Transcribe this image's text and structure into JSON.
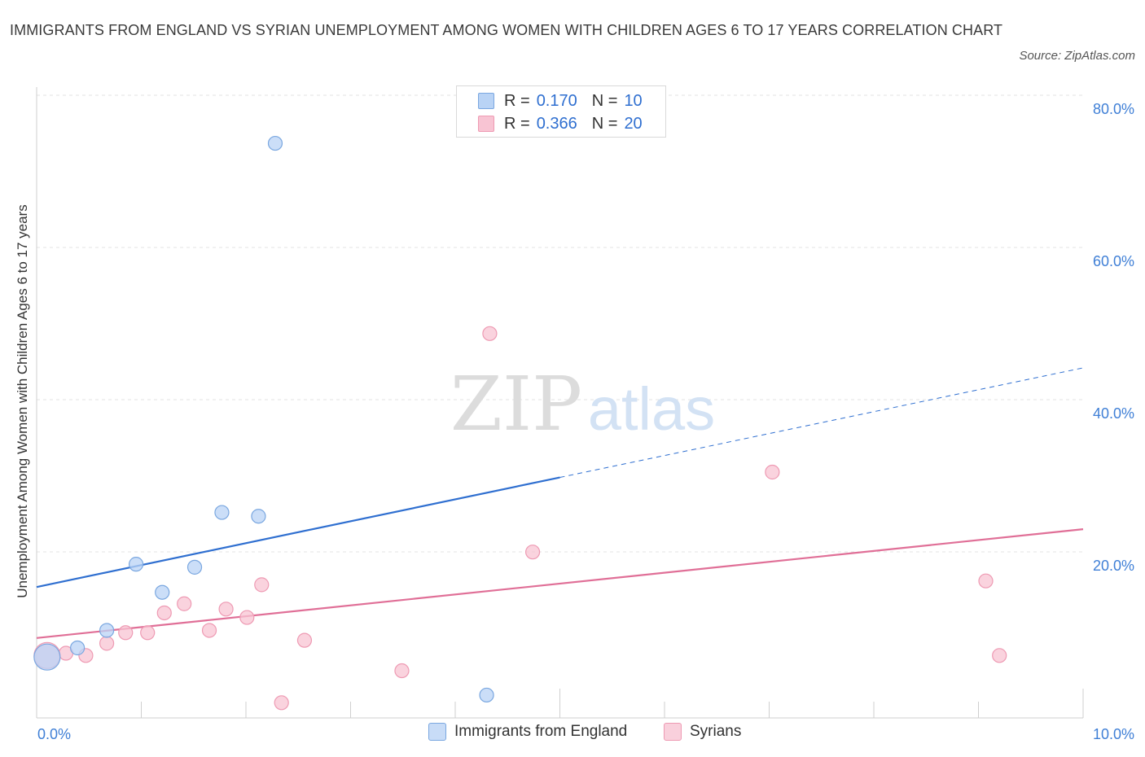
{
  "title": "IMMIGRANTS FROM ENGLAND VS SYRIAN UNEMPLOYMENT AMONG WOMEN WITH CHILDREN AGES 6 TO 17 YEARS CORRELATION CHART",
  "source": "Source: ZipAtlas.com",
  "watermark": {
    "zip": "ZIP",
    "atlas": "atlas"
  },
  "legend": {
    "rows": [
      {
        "r_label": "R =",
        "r_value": "0.170",
        "n_label": "N =",
        "n_value": "10"
      },
      {
        "r_label": "R =",
        "r_value": "0.366",
        "n_label": "N =",
        "n_value": "20"
      }
    ]
  },
  "bottom_legend": {
    "england": "Immigrants from England",
    "syrians": "Syrians"
  },
  "colors": {
    "england_fill": "#b9d3f5",
    "england_stroke": "#7aa7e0",
    "england_line": "#2f6fd0",
    "syrian_fill": "#f8c4d3",
    "syrian_stroke": "#ee9ab3",
    "syrian_line": "#e06f97",
    "tick_label": "#3f7fd6"
  },
  "chart_data": {
    "type": "scatter",
    "title": "IMMIGRANTS FROM ENGLAND VS SYRIAN UNEMPLOYMENT AMONG WOMEN WITH CHILDREN AGES 6 TO 17 YEARS CORRELATION CHART",
    "xlabel": "",
    "ylabel": "Unemployment Among Women with Children Ages 6 to 17 years",
    "xlim": [
      0,
      10
    ],
    "ylim": [
      0,
      80
    ],
    "x_tick_labels": [
      "0.0%",
      "10.0%"
    ],
    "y_ticks": [
      20,
      40,
      60,
      80
    ],
    "y_tick_labels": [
      "20.0%",
      "40.0%",
      "60.0%",
      "80.0%"
    ],
    "grid": true,
    "series": [
      {
        "name": "Immigrants from England",
        "points": [
          {
            "x": 0.1,
            "y": 8.0,
            "big": true
          },
          {
            "x": 0.39,
            "y": 9.2
          },
          {
            "x": 0.67,
            "y": 11.5
          },
          {
            "x": 0.95,
            "y": 20.2
          },
          {
            "x": 1.2,
            "y": 16.5
          },
          {
            "x": 1.51,
            "y": 19.8
          },
          {
            "x": 1.77,
            "y": 27.0
          },
          {
            "x": 2.12,
            "y": 26.5
          },
          {
            "x": 2.28,
            "y": 75.5
          },
          {
            "x": 4.3,
            "y": 3.0
          }
        ],
        "trend": {
          "x0": 0,
          "y0": 17.2,
          "x1": 10,
          "y1": 46.0,
          "solid_until_x": 5.0
        }
      },
      {
        "name": "Syrians",
        "points": [
          {
            "x": 0.1,
            "y": 8.2,
            "big": true
          },
          {
            "x": 0.28,
            "y": 8.5
          },
          {
            "x": 0.47,
            "y": 8.2
          },
          {
            "x": 0.67,
            "y": 9.8
          },
          {
            "x": 0.85,
            "y": 11.2
          },
          {
            "x": 1.06,
            "y": 11.2
          },
          {
            "x": 1.22,
            "y": 13.8
          },
          {
            "x": 1.41,
            "y": 15.0
          },
          {
            "x": 1.65,
            "y": 11.5
          },
          {
            "x": 1.81,
            "y": 14.3
          },
          {
            "x": 2.01,
            "y": 13.2
          },
          {
            "x": 2.15,
            "y": 17.5
          },
          {
            "x": 2.34,
            "y": 2.0
          },
          {
            "x": 2.56,
            "y": 10.2
          },
          {
            "x": 3.49,
            "y": 6.2
          },
          {
            "x": 4.33,
            "y": 50.5
          },
          {
            "x": 4.74,
            "y": 21.8
          },
          {
            "x": 7.03,
            "y": 32.3
          },
          {
            "x": 9.07,
            "y": 18.0
          },
          {
            "x": 9.2,
            "y": 8.2
          }
        ],
        "trend": {
          "x0": 0,
          "y0": 10.5,
          "x1": 10,
          "y1": 24.8,
          "solid_until_x": 10
        }
      }
    ]
  }
}
